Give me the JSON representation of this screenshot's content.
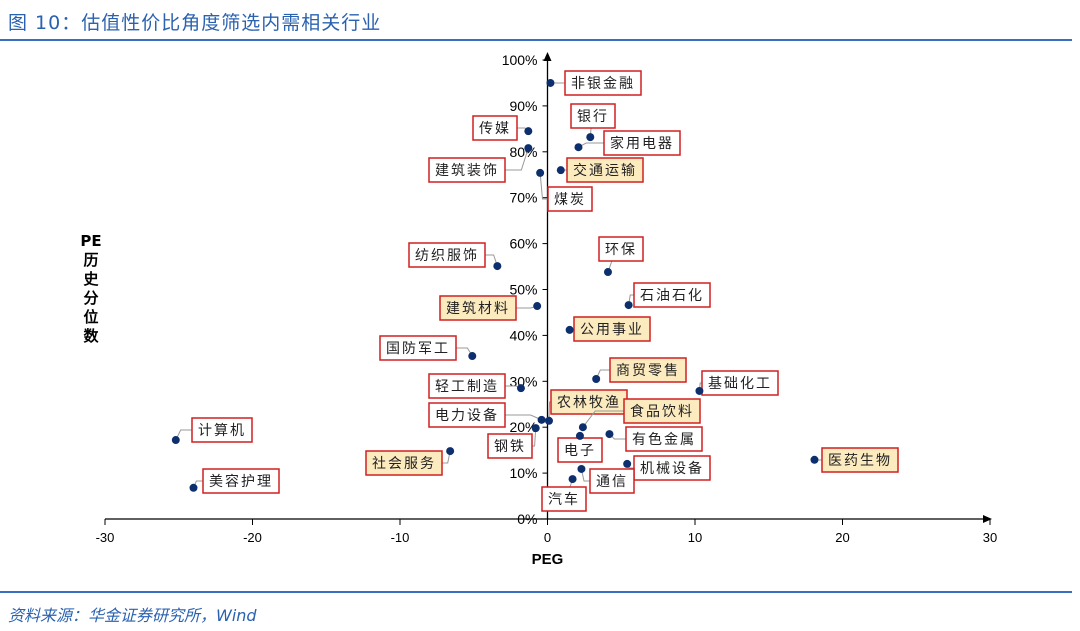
{
  "title": "图 10：估值性价比角度筛选内需相关行业",
  "source": "资料来源：华金证券研究所，Wind",
  "colors": {
    "title": "#2a62b0",
    "point": "#0d2f6e",
    "label_border": "#d02020",
    "highlight_fill": "#fdebc0",
    "leader": "#999999"
  },
  "chart_data": {
    "type": "scatter",
    "title": "",
    "xlabel": "PEG",
    "ylabel": "PE历史分位数",
    "xlim": [
      -30,
      30
    ],
    "ylim": [
      0,
      100
    ],
    "x_ticks": [
      "-30",
      "-20",
      "-10",
      "0",
      "10",
      "20",
      "30"
    ],
    "y_ticks": [
      "0%",
      "10%",
      "20%",
      "30%",
      "40%",
      "50%",
      "60%",
      "70%",
      "80%",
      "90%",
      "100%"
    ],
    "grid": false,
    "points": [
      {
        "label": "非银金融",
        "x": 0.2,
        "y": 95.0,
        "highlight": false
      },
      {
        "label": "传媒",
        "x": -1.3,
        "y": 84.5,
        "highlight": false
      },
      {
        "label": "银行",
        "x": 2.9,
        "y": 83.2,
        "highlight": false
      },
      {
        "label": "家用电器",
        "x": 2.1,
        "y": 81.0,
        "highlight": false
      },
      {
        "label": "建筑装饰",
        "x": -1.3,
        "y": 80.8,
        "highlight": false
      },
      {
        "label": "交通运输",
        "x": 0.9,
        "y": 76.0,
        "highlight": true
      },
      {
        "label": "煤炭",
        "x": -0.5,
        "y": 75.4,
        "highlight": false
      },
      {
        "label": "纺织服饰",
        "x": -3.4,
        "y": 55.1,
        "highlight": false
      },
      {
        "label": "环保",
        "x": 4.1,
        "y": 53.8,
        "highlight": false
      },
      {
        "label": "石油石化",
        "x": 5.5,
        "y": 46.6,
        "highlight": false
      },
      {
        "label": "建筑材料",
        "x": -0.7,
        "y": 46.4,
        "highlight": true
      },
      {
        "label": "公用事业",
        "x": 1.5,
        "y": 41.2,
        "highlight": true
      },
      {
        "label": "国防军工",
        "x": -5.1,
        "y": 35.5,
        "highlight": false
      },
      {
        "label": "商贸零售",
        "x": 3.3,
        "y": 30.5,
        "highlight": true
      },
      {
        "label": "基础化工",
        "x": 10.3,
        "y": 27.9,
        "highlight": false
      },
      {
        "label": "轻工制造",
        "x": -1.8,
        "y": 28.5,
        "highlight": false
      },
      {
        "label": "电力设备",
        "x": -0.4,
        "y": 21.6,
        "highlight": false
      },
      {
        "label": "农林牧渔",
        "x": 0.1,
        "y": 21.4,
        "highlight": true
      },
      {
        "label": "食品饮料",
        "x": 2.4,
        "y": 20.0,
        "highlight": true
      },
      {
        "label": "有色金属",
        "x": 4.2,
        "y": 18.5,
        "highlight": false
      },
      {
        "label": "钢铁",
        "x": -0.8,
        "y": 19.8,
        "highlight": false
      },
      {
        "label": "电子",
        "x": 2.2,
        "y": 18.1,
        "highlight": false
      },
      {
        "label": "社会服务",
        "x": -6.6,
        "y": 14.8,
        "highlight": true
      },
      {
        "label": "机械设备",
        "x": 5.4,
        "y": 12.0,
        "highlight": false
      },
      {
        "label": "通信",
        "x": 2.3,
        "y": 10.9,
        "highlight": false
      },
      {
        "label": "汽车",
        "x": 1.7,
        "y": 8.7,
        "highlight": false
      },
      {
        "label": "计算机",
        "x": -25.2,
        "y": 17.2,
        "highlight": false
      },
      {
        "label": "美容护理",
        "x": -24.0,
        "y": 6.8,
        "highlight": false
      },
      {
        "label": "医药生物",
        "x": 18.1,
        "y": 12.9,
        "highlight": true
      }
    ]
  }
}
